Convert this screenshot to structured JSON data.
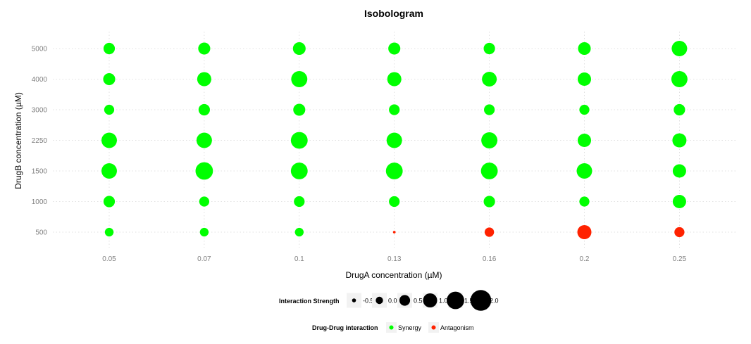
{
  "chart_data": {
    "type": "scatter",
    "title": "Isobologram",
    "xlabel": "DrugA concentration (µM)",
    "ylabel": "DrugB concentration (µM)",
    "x_categories": [
      "0.05",
      "0.07",
      "0.1",
      "0.13",
      "0.16",
      "0.2",
      "0.25"
    ],
    "y_categories": [
      "500",
      "1000",
      "1500",
      "2250",
      "3000",
      "4000",
      "5000"
    ],
    "grid": true,
    "colors": {
      "Synergy": "#00ff00",
      "Antagonism": "#ff2200"
    },
    "points": [
      {
        "x": "0.05",
        "y": "5000",
        "strength": 0.6,
        "interaction": "Synergy"
      },
      {
        "x": "0.07",
        "y": "5000",
        "strength": 0.7,
        "interaction": "Synergy"
      },
      {
        "x": "0.1",
        "y": "5000",
        "strength": 0.8,
        "interaction": "Synergy"
      },
      {
        "x": "0.13",
        "y": "5000",
        "strength": 0.7,
        "interaction": "Synergy"
      },
      {
        "x": "0.16",
        "y": "5000",
        "strength": 0.6,
        "interaction": "Synergy"
      },
      {
        "x": "0.2",
        "y": "5000",
        "strength": 0.8,
        "interaction": "Synergy"
      },
      {
        "x": "0.25",
        "y": "5000",
        "strength": 1.2,
        "interaction": "Synergy"
      },
      {
        "x": "0.05",
        "y": "4000",
        "strength": 0.7,
        "interaction": "Synergy"
      },
      {
        "x": "0.07",
        "y": "4000",
        "strength": 1.0,
        "interaction": "Synergy"
      },
      {
        "x": "0.1",
        "y": "4000",
        "strength": 1.3,
        "interaction": "Synergy"
      },
      {
        "x": "0.13",
        "y": "4000",
        "strength": 1.0,
        "interaction": "Synergy"
      },
      {
        "x": "0.16",
        "y": "4000",
        "strength": 1.1,
        "interaction": "Synergy"
      },
      {
        "x": "0.2",
        "y": "4000",
        "strength": 0.9,
        "interaction": "Synergy"
      },
      {
        "x": "0.25",
        "y": "4000",
        "strength": 1.3,
        "interaction": "Synergy"
      },
      {
        "x": "0.05",
        "y": "3000",
        "strength": 0.4,
        "interaction": "Synergy"
      },
      {
        "x": "0.07",
        "y": "3000",
        "strength": 0.6,
        "interaction": "Synergy"
      },
      {
        "x": "0.1",
        "y": "3000",
        "strength": 0.7,
        "interaction": "Synergy"
      },
      {
        "x": "0.13",
        "y": "3000",
        "strength": 0.5,
        "interaction": "Synergy"
      },
      {
        "x": "0.16",
        "y": "3000",
        "strength": 0.5,
        "interaction": "Synergy"
      },
      {
        "x": "0.2",
        "y": "3000",
        "strength": 0.4,
        "interaction": "Synergy"
      },
      {
        "x": "0.25",
        "y": "3000",
        "strength": 0.6,
        "interaction": "Synergy"
      },
      {
        "x": "0.05",
        "y": "2250",
        "strength": 1.2,
        "interaction": "Synergy"
      },
      {
        "x": "0.07",
        "y": "2250",
        "strength": 1.2,
        "interaction": "Synergy"
      },
      {
        "x": "0.1",
        "y": "2250",
        "strength": 1.4,
        "interaction": "Synergy"
      },
      {
        "x": "0.13",
        "y": "2250",
        "strength": 1.2,
        "interaction": "Synergy"
      },
      {
        "x": "0.16",
        "y": "2250",
        "strength": 1.3,
        "interaction": "Synergy"
      },
      {
        "x": "0.2",
        "y": "2250",
        "strength": 0.9,
        "interaction": "Synergy"
      },
      {
        "x": "0.25",
        "y": "2250",
        "strength": 1.0,
        "interaction": "Synergy"
      },
      {
        "x": "0.05",
        "y": "1500",
        "strength": 1.2,
        "interaction": "Synergy"
      },
      {
        "x": "0.07",
        "y": "1500",
        "strength": 1.5,
        "interaction": "Synergy"
      },
      {
        "x": "0.1",
        "y": "1500",
        "strength": 1.4,
        "interaction": "Synergy"
      },
      {
        "x": "0.13",
        "y": "1500",
        "strength": 1.4,
        "interaction": "Synergy"
      },
      {
        "x": "0.16",
        "y": "1500",
        "strength": 1.4,
        "interaction": "Synergy"
      },
      {
        "x": "0.2",
        "y": "1500",
        "strength": 1.2,
        "interaction": "Synergy"
      },
      {
        "x": "0.25",
        "y": "1500",
        "strength": 0.9,
        "interaction": "Synergy"
      },
      {
        "x": "0.05",
        "y": "1000",
        "strength": 0.6,
        "interaction": "Synergy"
      },
      {
        "x": "0.07",
        "y": "1000",
        "strength": 0.4,
        "interaction": "Synergy"
      },
      {
        "x": "0.1",
        "y": "1000",
        "strength": 0.5,
        "interaction": "Synergy"
      },
      {
        "x": "0.13",
        "y": "1000",
        "strength": 0.5,
        "interaction": "Synergy"
      },
      {
        "x": "0.16",
        "y": "1000",
        "strength": 0.6,
        "interaction": "Synergy"
      },
      {
        "x": "0.2",
        "y": "1000",
        "strength": 0.4,
        "interaction": "Synergy"
      },
      {
        "x": "0.25",
        "y": "1000",
        "strength": 0.9,
        "interaction": "Synergy"
      },
      {
        "x": "0.05",
        "y": "500",
        "strength": 0.2,
        "interaction": "Synergy"
      },
      {
        "x": "0.07",
        "y": "500",
        "strength": 0.2,
        "interaction": "Synergy"
      },
      {
        "x": "0.1",
        "y": "500",
        "strength": 0.2,
        "interaction": "Synergy"
      },
      {
        "x": "0.13",
        "y": "500",
        "strength": -0.7,
        "interaction": "Antagonism"
      },
      {
        "x": "0.16",
        "y": "500",
        "strength": 0.3,
        "interaction": "Antagonism"
      },
      {
        "x": "0.2",
        "y": "500",
        "strength": 1.0,
        "interaction": "Antagonism"
      },
      {
        "x": "0.25",
        "y": "500",
        "strength": 0.4,
        "interaction": "Antagonism"
      }
    ],
    "size_legend": {
      "title": "Interaction Strength",
      "values": [
        -0.5,
        0.0,
        0.5,
        1.0,
        1.5,
        2.0
      ],
      "labels": [
        "-0.5",
        "0.0",
        "0.5",
        "1.0",
        "1.5",
        "2.0"
      ]
    },
    "color_legend": {
      "title": "Drug-Drug interaction",
      "labels": [
        "Synergy",
        "Antagonism"
      ]
    }
  }
}
